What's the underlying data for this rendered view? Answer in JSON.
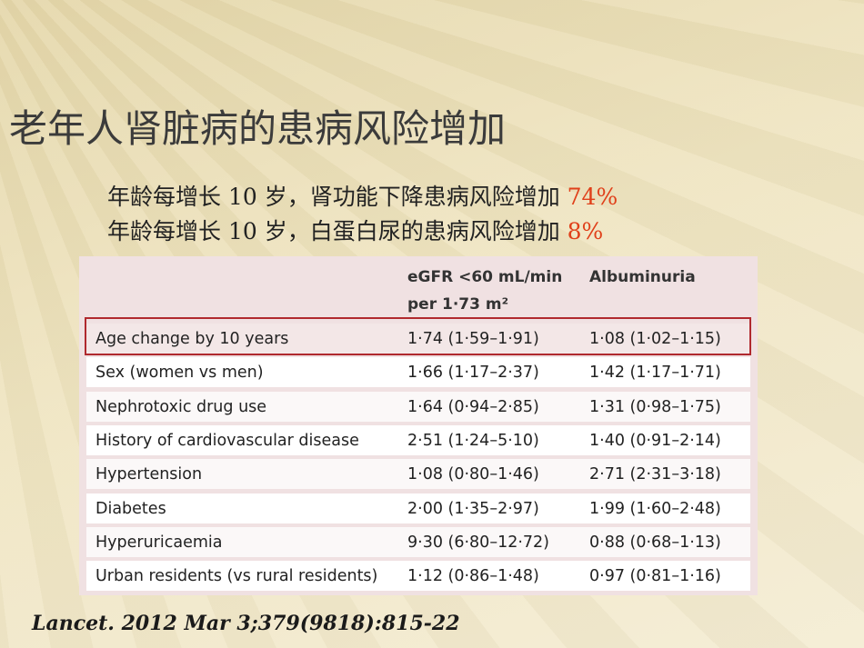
{
  "title": "老年人肾脏病的患病风险增加",
  "bullets": [
    {
      "text": "年龄每增长 10 岁，肾功能下降患病风险增加 ",
      "highlight": "74%"
    },
    {
      "text": "年龄每增长 10 岁，白蛋白尿的患病风险增加 ",
      "highlight": "8%"
    }
  ],
  "table": {
    "header": [
      [
        "eGFR <60 mL/min",
        "per 1·73 m²"
      ],
      [
        "Albuminuria"
      ]
    ],
    "rows": [
      [
        "Age change by 10 years",
        "1·74 (1·59–1·91)",
        "1·08 (1·02–1·15)"
      ],
      [
        "Sex (women vs men)",
        "1·66 (1·17–2·37)",
        "1·42 (1·17–1·71)"
      ],
      [
        "Nephrotoxic drug use",
        "1·64 (0·94–2·85)",
        "1·31 (0·98–1·75)"
      ],
      [
        "History of cardiovascular disease",
        "2·51 (1·24–5·10)",
        "1·40 (0·91–2·14)"
      ],
      [
        "Hypertension",
        "1·08 (0·80–1·46)",
        "2·71 (2·31–3·18)"
      ],
      [
        "Diabetes",
        "2·00 (1·35–2·97)",
        "1·99 (1·60–2·48)"
      ],
      [
        "Hyperuricaemia",
        "9·30 (6·80–12·72)",
        "0·88 (0·68–1·13)"
      ],
      [
        "Urban residents (vs rural residents)",
        "1·12 (0·86–1·48)",
        "0·97 (0·81–1·16)"
      ]
    ]
  },
  "citation": "Lancet. 2012 Mar 3;379(9818):815-22"
}
